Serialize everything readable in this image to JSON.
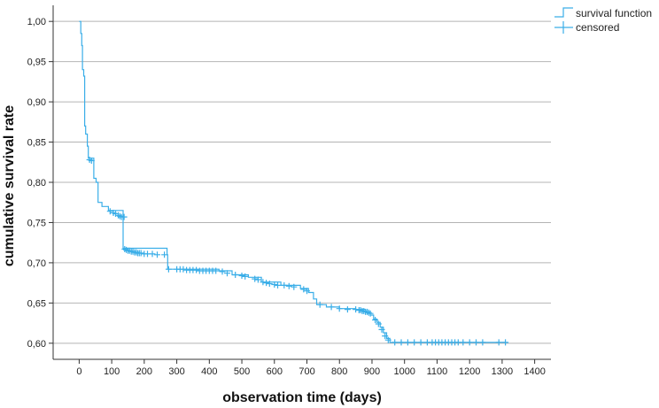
{
  "chart_data": {
    "type": "line",
    "title": "",
    "xlabel": "observation time (days)",
    "ylabel": "cumulative survival rate",
    "xlim": [
      -80,
      1450
    ],
    "ylim": [
      0.58,
      1.02
    ],
    "x_ticks": [
      0,
      100,
      200,
      300,
      400,
      500,
      600,
      700,
      800,
      900,
      1000,
      1100,
      1200,
      1300,
      1400
    ],
    "x_tick_labels": [
      "0",
      "100",
      "200",
      "300",
      "400",
      "500",
      "600",
      "700",
      "800",
      "900",
      "1000",
      "1100",
      "1200",
      "1300",
      "1400"
    ],
    "y_ticks": [
      0.6,
      0.65,
      0.7,
      0.75,
      0.8,
      0.85,
      0.9,
      0.95,
      1.0
    ],
    "y_tick_labels": [
      "0,60",
      "0,65",
      "0,70",
      "0,75",
      "0,80",
      "0,85",
      "0,90",
      "0,95",
      "1,00"
    ],
    "grid": "horizontal",
    "legend_position": "top-right",
    "colors": {
      "series": "#3aaee8",
      "grid": "#b4b4b4",
      "axis": "#333333"
    },
    "legend": [
      {
        "label": "survival function",
        "symbol": "step"
      },
      {
        "label": "censored",
        "symbol": "plus"
      }
    ],
    "series": [
      {
        "name": "survival function",
        "step_points": [
          [
            0,
            1.0
          ],
          [
            5,
            0.985
          ],
          [
            8,
            0.97
          ],
          [
            10,
            0.94
          ],
          [
            14,
            0.932
          ],
          [
            17,
            0.87
          ],
          [
            20,
            0.86
          ],
          [
            25,
            0.845
          ],
          [
            28,
            0.83
          ],
          [
            45,
            0.805
          ],
          [
            52,
            0.8
          ],
          [
            58,
            0.775
          ],
          [
            70,
            0.77
          ],
          [
            90,
            0.765
          ],
          [
            135,
            0.718
          ],
          [
            270,
            0.71
          ],
          [
            272,
            0.692
          ],
          [
            430,
            0.69
          ],
          [
            470,
            0.685
          ],
          [
            520,
            0.682
          ],
          [
            560,
            0.676
          ],
          [
            620,
            0.672
          ],
          [
            680,
            0.668
          ],
          [
            705,
            0.663
          ],
          [
            720,
            0.655
          ],
          [
            730,
            0.648
          ],
          [
            760,
            0.645
          ],
          [
            800,
            0.643
          ],
          [
            850,
            0.642
          ],
          [
            880,
            0.638
          ],
          [
            895,
            0.635
          ],
          [
            905,
            0.63
          ],
          [
            915,
            0.626
          ],
          [
            925,
            0.62
          ],
          [
            935,
            0.613
          ],
          [
            945,
            0.606
          ],
          [
            955,
            0.601
          ],
          [
            1310,
            0.601
          ]
        ]
      },
      {
        "name": "censored",
        "points": [
          [
            32,
            0.828
          ],
          [
            38,
            0.827
          ],
          [
            95,
            0.764
          ],
          [
            105,
            0.762
          ],
          [
            112,
            0.761
          ],
          [
            120,
            0.759
          ],
          [
            125,
            0.758
          ],
          [
            130,
            0.757
          ],
          [
            138,
            0.757
          ],
          [
            140,
            0.717
          ],
          [
            145,
            0.716
          ],
          [
            150,
            0.715
          ],
          [
            155,
            0.715
          ],
          [
            160,
            0.714
          ],
          [
            165,
            0.714
          ],
          [
            170,
            0.713
          ],
          [
            175,
            0.713
          ],
          [
            180,
            0.712
          ],
          [
            185,
            0.712
          ],
          [
            190,
            0.712
          ],
          [
            200,
            0.711
          ],
          [
            210,
            0.711
          ],
          [
            225,
            0.711
          ],
          [
            240,
            0.71
          ],
          [
            262,
            0.71
          ],
          [
            275,
            0.692
          ],
          [
            300,
            0.692
          ],
          [
            310,
            0.692
          ],
          [
            320,
            0.692
          ],
          [
            330,
            0.691
          ],
          [
            340,
            0.691
          ],
          [
            350,
            0.691
          ],
          [
            360,
            0.691
          ],
          [
            370,
            0.69
          ],
          [
            380,
            0.69
          ],
          [
            390,
            0.69
          ],
          [
            400,
            0.69
          ],
          [
            410,
            0.69
          ],
          [
            420,
            0.69
          ],
          [
            440,
            0.689
          ],
          [
            455,
            0.687
          ],
          [
            480,
            0.685
          ],
          [
            500,
            0.684
          ],
          [
            510,
            0.683
          ],
          [
            540,
            0.68
          ],
          [
            550,
            0.679
          ],
          [
            565,
            0.676
          ],
          [
            575,
            0.675
          ],
          [
            585,
            0.674
          ],
          [
            600,
            0.673
          ],
          [
            610,
            0.672
          ],
          [
            630,
            0.672
          ],
          [
            645,
            0.671
          ],
          [
            660,
            0.67
          ],
          [
            690,
            0.667
          ],
          [
            700,
            0.665
          ],
          [
            740,
            0.648
          ],
          [
            775,
            0.645
          ],
          [
            800,
            0.643
          ],
          [
            825,
            0.642
          ],
          [
            850,
            0.642
          ],
          [
            860,
            0.641
          ],
          [
            865,
            0.641
          ],
          [
            870,
            0.64
          ],
          [
            875,
            0.64
          ],
          [
            880,
            0.639
          ],
          [
            885,
            0.639
          ],
          [
            890,
            0.638
          ],
          [
            895,
            0.637
          ],
          [
            910,
            0.629
          ],
          [
            920,
            0.624
          ],
          [
            930,
            0.617
          ],
          [
            940,
            0.609
          ],
          [
            950,
            0.604
          ],
          [
            970,
            0.601
          ],
          [
            990,
            0.601
          ],
          [
            1010,
            0.601
          ],
          [
            1030,
            0.601
          ],
          [
            1050,
            0.601
          ],
          [
            1070,
            0.601
          ],
          [
            1085,
            0.601
          ],
          [
            1095,
            0.601
          ],
          [
            1105,
            0.601
          ],
          [
            1115,
            0.601
          ],
          [
            1125,
            0.601
          ],
          [
            1135,
            0.601
          ],
          [
            1145,
            0.601
          ],
          [
            1155,
            0.601
          ],
          [
            1165,
            0.601
          ],
          [
            1180,
            0.601
          ],
          [
            1200,
            0.601
          ],
          [
            1220,
            0.601
          ],
          [
            1240,
            0.601
          ],
          [
            1290,
            0.601
          ],
          [
            1310,
            0.601
          ]
        ]
      }
    ]
  }
}
